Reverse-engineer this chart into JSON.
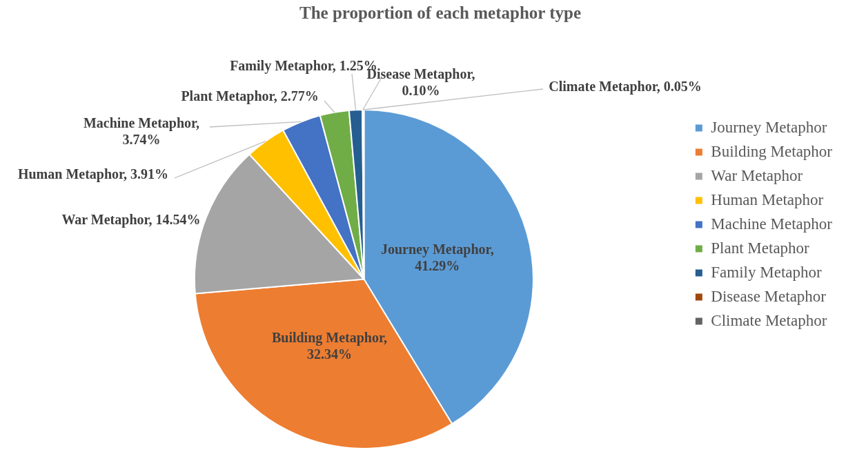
{
  "chart_data": {
    "type": "pie",
    "title": "The proportion of each metaphor type",
    "categories": [
      "Journey Metaphor",
      "Building Metaphor",
      "War Metaphor",
      "Human Metaphor",
      "Machine Metaphor",
      "Plant Metaphor",
      "Family Metaphor",
      "Disease Metaphor",
      "Climate Metaphor"
    ],
    "values": [
      41.29,
      32.34,
      14.54,
      3.91,
      3.74,
      2.77,
      1.25,
      0.1,
      0.05
    ],
    "value_labels": [
      "Journey Metaphor, 41.29%",
      "Building Metaphor, 32.34%",
      "War Metaphor, 14.54%",
      "Human Metaphor, 3.91%",
      "Machine Metaphor, 3.74%",
      "Plant Metaphor, 2.77%",
      "Family Metaphor, 1.25%",
      "Disease Metaphor, 0.10%",
      "Climate Metaphor, 0.05%"
    ],
    "colors": [
      "#5b9bd5",
      "#ed7d31",
      "#a5a5a5",
      "#ffc000",
      "#4472c4",
      "#70ad47",
      "#255e91",
      "#9e480e",
      "#636363"
    ],
    "legend": "right"
  }
}
